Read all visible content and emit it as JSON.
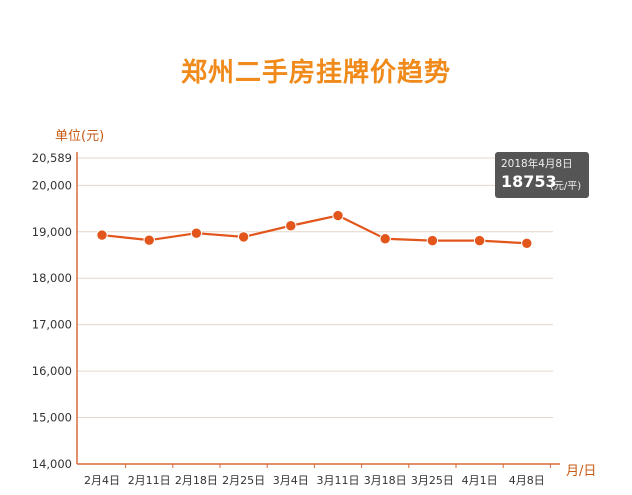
{
  "title": "郑州二手房挂牌价趋势",
  "colors": {
    "title": "#f08a1a",
    "line": "#e2551b",
    "axis": "#d56b3a",
    "grid": "#e6d6c8",
    "tooltip_bg": "#555555"
  },
  "chart_data": {
    "type": "line",
    "title": "郑州二手房挂牌价趋势",
    "ylabel": "单位(元)",
    "xlabel": "月/日",
    "categories": [
      "2月4日",
      "2月11日",
      "2月18日",
      "2月25日",
      "3月4日",
      "3月11日",
      "3月18日",
      "3月25日",
      "4月1日",
      "4月8日"
    ],
    "series": [
      {
        "values": [
          18930,
          18820,
          18970,
          18890,
          19130,
          19350,
          18850,
          18810,
          18810,
          18753
        ]
      }
    ],
    "ylim": [
      14000,
      20589
    ],
    "yticks": [
      14000,
      15000,
      16000,
      17000,
      18000,
      19000,
      20000,
      20589
    ],
    "ytick_labels": [
      "14,000",
      "15,000",
      "16,000",
      "17,000",
      "18,000",
      "19,000",
      "20,000",
      "20,589"
    ],
    "grid": true,
    "legend": "none"
  },
  "tooltip": {
    "date": "2018年4月8日",
    "value": "18753",
    "unit": "(元/平)"
  }
}
